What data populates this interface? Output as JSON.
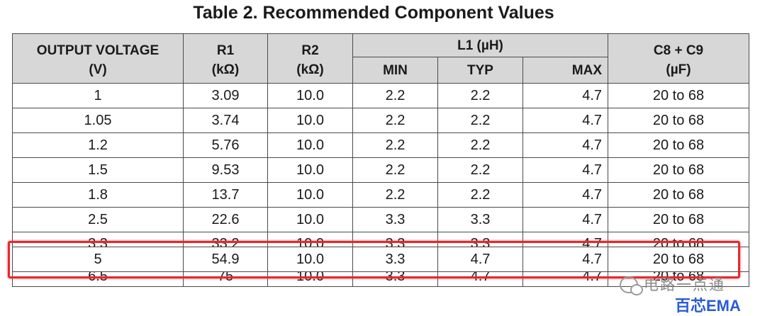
{
  "title": "Table 2. Recommended Component Values",
  "headers": {
    "output_voltage": "OUTPUT VOLTAGE",
    "output_voltage_unit": "(V)",
    "r1": "R1",
    "r1_unit": "(kΩ)",
    "r2": "R2",
    "r2_unit": "(kΩ)",
    "l1": "L1 (µH)",
    "l1_min": "MIN",
    "l1_typ": "TYP",
    "l1_max": "MAX",
    "c8c9": "C8 + C9",
    "c8c9_unit": "(µF)"
  },
  "rows": [
    {
      "vout": "1",
      "r1": "3.09",
      "r2": "10.0",
      "min": "2.2",
      "typ": "2.2",
      "max": "4.7",
      "c": "20 to 68"
    },
    {
      "vout": "1.05",
      "r1": "3.74",
      "r2": "10.0",
      "min": "2.2",
      "typ": "2.2",
      "max": "4.7",
      "c": "20 to 68"
    },
    {
      "vout": "1.2",
      "r1": "5.76",
      "r2": "10.0",
      "min": "2.2",
      "typ": "2.2",
      "max": "4.7",
      "c": "20 to 68"
    },
    {
      "vout": "1.5",
      "r1": "9.53",
      "r2": "10.0",
      "min": "2.2",
      "typ": "2.2",
      "max": "4.7",
      "c": "20 to 68"
    },
    {
      "vout": "1.8",
      "r1": "13.7",
      "r2": "10.0",
      "min": "2.2",
      "typ": "2.2",
      "max": "4.7",
      "c": "20 to 68"
    },
    {
      "vout": "2.5",
      "r1": "22.6",
      "r2": "10.0",
      "min": "3.3",
      "typ": "3.3",
      "max": "4.7",
      "c": "20 to 68"
    },
    {
      "vout": "3.3",
      "r1": "33.2",
      "r2": "10.0",
      "min": "3.3",
      "typ": "3.3",
      "max": "4.7",
      "c": "20 to 68"
    },
    {
      "vout": "5",
      "r1": "54.9",
      "r2": "10.0",
      "min": "3.3",
      "typ": "4.7",
      "max": "4.7",
      "c": "20 to 68"
    },
    {
      "vout": "6.5",
      "r1": "75",
      "r2": "10.0",
      "min": "3.3",
      "typ": "4.7",
      "max": "4.7",
      "c": "20 to 68"
    }
  ],
  "highlight": {
    "color": "#e8272c"
  },
  "watermark": {
    "line1": "电路一点通",
    "line2": "百芯EMA",
    "line2_color": "#2a5bd7"
  }
}
